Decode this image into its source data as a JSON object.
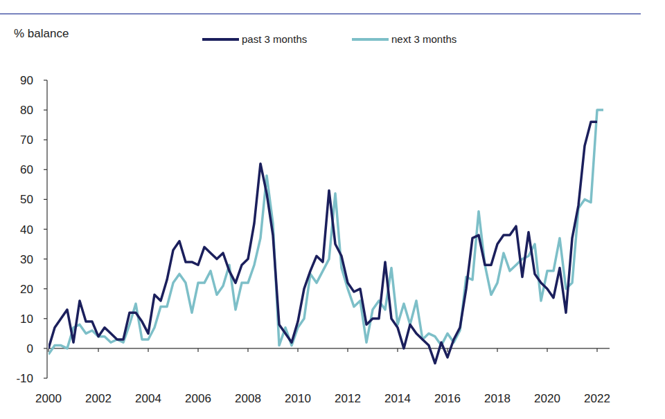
{
  "chart_data": {
    "type": "line",
    "y_label": "% balance",
    "legend": "top",
    "grid": false,
    "xlim": [
      2000,
      2022.5
    ],
    "xticks": [
      2000,
      2002,
      2004,
      2006,
      2008,
      2010,
      2012,
      2014,
      2016,
      2018,
      2020,
      2022
    ],
    "ylim": [
      -10,
      90
    ],
    "yticks": [
      -10,
      0,
      10,
      20,
      30,
      40,
      50,
      60,
      70,
      80,
      90
    ],
    "x": [
      2000,
      2000.25,
      2000.5,
      2000.75,
      2001,
      2001.25,
      2001.5,
      2001.75,
      2002,
      2002.25,
      2002.5,
      2002.75,
      2003,
      2003.25,
      2003.5,
      2003.75,
      2004,
      2004.25,
      2004.5,
      2004.75,
      2005,
      2005.25,
      2005.5,
      2005.75,
      2006,
      2006.25,
      2006.5,
      2006.75,
      2007,
      2007.25,
      2007.5,
      2007.75,
      2008,
      2008.25,
      2008.5,
      2008.75,
      2009,
      2009.25,
      2009.5,
      2009.75,
      2010,
      2010.25,
      2010.5,
      2010.75,
      2011,
      2011.25,
      2011.5,
      2011.75,
      2012,
      2012.25,
      2012.5,
      2012.75,
      2013,
      2013.25,
      2013.5,
      2013.75,
      2014,
      2014.25,
      2014.5,
      2014.75,
      2015,
      2015.25,
      2015.5,
      2015.75,
      2016,
      2016.25,
      2016.5,
      2016.75,
      2017,
      2017.25,
      2017.5,
      2017.75,
      2018,
      2018.25,
      2018.5,
      2018.75,
      2019,
      2019.25,
      2019.5,
      2019.75,
      2020,
      2020.25,
      2020.5,
      2020.75,
      2021,
      2021.25,
      2021.5,
      2021.75,
      2022,
      2022.25
    ],
    "series": [
      {
        "name": "past 3 months",
        "color": "#1b1f5c",
        "values": [
          0,
          7,
          10,
          13,
          2,
          16,
          9,
          9,
          4,
          7,
          5,
          3,
          3,
          12,
          12,
          9,
          5,
          18,
          16,
          23,
          33,
          36,
          29,
          29,
          28,
          34,
          32,
          30,
          32,
          26,
          22,
          28,
          30,
          42,
          62,
          52,
          38,
          8,
          5,
          2,
          9,
          20,
          26,
          31,
          29,
          53,
          35,
          31,
          22,
          19,
          20,
          8,
          10,
          10,
          29,
          10,
          7,
          0,
          8,
          5,
          3,
          1,
          -5,
          2,
          -3,
          3,
          7,
          20,
          37,
          38,
          28,
          28,
          35,
          38,
          38,
          41,
          24,
          39,
          25,
          22,
          20,
          17,
          27,
          12,
          37,
          48,
          68,
          76,
          76,
          null
        ]
      },
      {
        "name": "next 3 months",
        "color": "#7dbfc8",
        "values": [
          -2,
          1,
          1,
          0,
          7,
          8,
          5,
          6,
          4,
          4,
          2,
          3,
          2,
          8,
          15,
          3,
          3,
          7,
          14,
          14,
          22,
          25,
          22,
          12,
          22,
          22,
          26,
          18,
          21,
          28,
          13,
          22,
          22,
          28,
          37,
          58,
          42,
          1,
          7,
          1,
          7,
          10,
          25,
          22,
          26,
          30,
          52,
          27,
          20,
          14,
          16,
          2,
          13,
          16,
          13,
          27,
          8,
          15,
          8,
          16,
          3,
          5,
          4,
          1,
          5,
          2,
          6,
          24,
          23,
          46,
          28,
          18,
          22,
          32,
          26,
          28,
          30,
          31,
          35,
          16,
          26,
          26,
          37,
          20,
          22,
          47,
          50,
          49,
          80,
          80
        ]
      }
    ]
  }
}
